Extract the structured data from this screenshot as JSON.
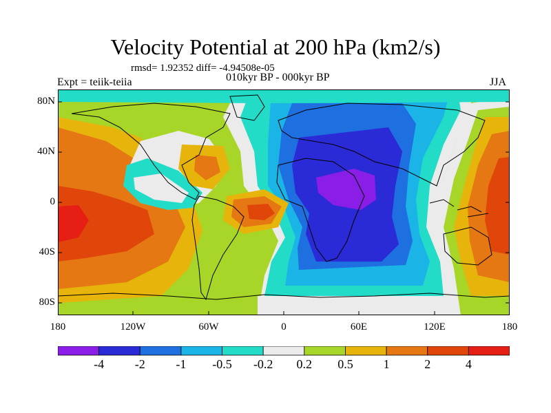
{
  "title": "Velocity Potential at 200 hPa (km2/s)",
  "stats": "rmsd= 1.92352 diff= -4.94508e-05",
  "experiment": "Expt = teiik-teiia",
  "period": "010kyr BP - 000kyr BP",
  "season": "JJA",
  "lat_labels": [
    "80N",
    "40N",
    "0",
    "40S",
    "80S"
  ],
  "lon_labels": [
    "180",
    "120W",
    "60W",
    "0",
    "60E",
    "120E",
    "180"
  ],
  "colorbar": {
    "labels": [
      "-4",
      "-2",
      "-1",
      "-0.5",
      "-0.2",
      "0.2",
      "0.5",
      "1",
      "2",
      "4"
    ],
    "colors": [
      "#8a1ee6",
      "#2a2ad6",
      "#1e6fe0",
      "#1ab4e6",
      "#22dcc8",
      "#ebebeb",
      "#a8d628",
      "#e6b40a",
      "#e67814",
      "#e0460a",
      "#e61e14"
    ]
  }
}
